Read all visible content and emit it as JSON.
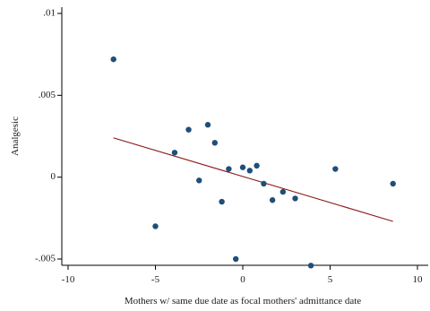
{
  "chart_data": {
    "type": "scatter",
    "xlabel": "Mothers w/ same due date as focal mothers' admittance date",
    "ylabel": "Analgesic",
    "xlim": [
      -10,
      10
    ],
    "ylim": [
      -0.005,
      0.01
    ],
    "x_ticks": [
      {
        "value": -10,
        "label": "-10"
      },
      {
        "value": -5,
        "label": "-5"
      },
      {
        "value": 0,
        "label": "0"
      },
      {
        "value": 5,
        "label": "5"
      },
      {
        "value": 10,
        "label": "10"
      }
    ],
    "y_ticks": [
      {
        "value": -0.005,
        "label": "-.005"
      },
      {
        "value": 0,
        "label": "0"
      },
      {
        "value": 0.005,
        "label": ".005"
      },
      {
        "value": 0.01,
        "label": ".01"
      }
    ],
    "grid": false,
    "point_color": "#1f4e79",
    "fit_line_color": "#8b1a1a",
    "points": [
      {
        "x": -7.4,
        "y": 0.0072
      },
      {
        "x": -5.0,
        "y": -0.003
      },
      {
        "x": -3.9,
        "y": 0.0015
      },
      {
        "x": -3.1,
        "y": 0.0029
      },
      {
        "x": -2.5,
        "y": -0.0002
      },
      {
        "x": -2.0,
        "y": 0.0032
      },
      {
        "x": -1.6,
        "y": 0.0021
      },
      {
        "x": -1.2,
        "y": -0.0015
      },
      {
        "x": -0.8,
        "y": 0.0005
      },
      {
        "x": -0.4,
        "y": -0.005
      },
      {
        "x": 0.0,
        "y": 0.0006
      },
      {
        "x": 0.4,
        "y": 0.0004
      },
      {
        "x": 0.8,
        "y": 0.0007
      },
      {
        "x": 1.2,
        "y": -0.0004
      },
      {
        "x": 1.7,
        "y": -0.0014
      },
      {
        "x": 2.3,
        "y": -0.0009
      },
      {
        "x": 3.0,
        "y": -0.0013
      },
      {
        "x": 3.9,
        "y": -0.0054
      },
      {
        "x": 5.3,
        "y": 0.0005
      },
      {
        "x": 8.6,
        "y": -0.0004
      }
    ],
    "fit_line": {
      "x": [
        -7.4,
        8.6
      ],
      "y": [
        0.0024,
        -0.0027
      ]
    }
  }
}
